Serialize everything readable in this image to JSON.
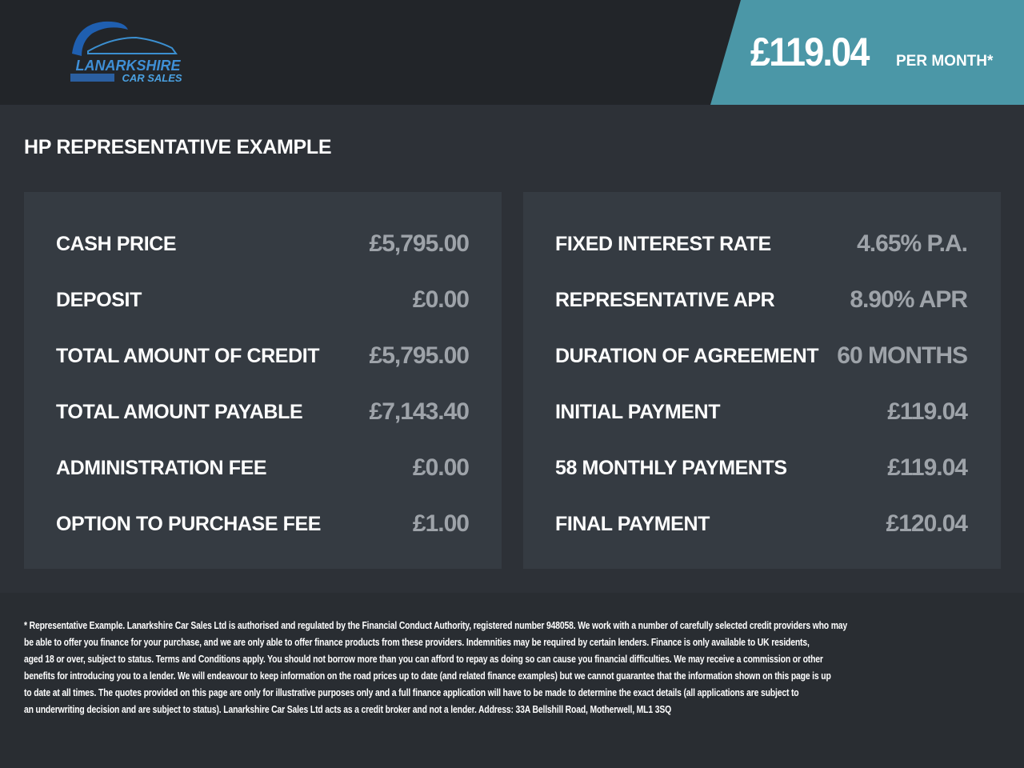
{
  "header": {
    "logo_text": [
      "LANARKSHIRE",
      "CAR SALES"
    ],
    "monthly_price": "£119.04",
    "per_month": "PER MONTH*"
  },
  "colors": {
    "accent": "#4b97a7",
    "header_bg": "#222529",
    "panel_bg": "#353b42"
  },
  "title": "HP REPRESENTATIVE EXAMPLE",
  "left": [
    {
      "label": "CASH PRICE",
      "value": "£5,795.00"
    },
    {
      "label": "DEPOSIT",
      "value": "£0.00"
    },
    {
      "label": "TOTAL AMOUNT OF CREDIT",
      "value": "£5,795.00"
    },
    {
      "label": "TOTAL AMOUNT PAYABLE",
      "value": "£7,143.40"
    },
    {
      "label": "ADMINISTRATION FEE",
      "value": "£0.00"
    },
    {
      "label": "OPTION TO PURCHASE FEE",
      "value": "£1.00"
    }
  ],
  "right": [
    {
      "label": "FIXED INTEREST RATE",
      "value": "4.65% P.A."
    },
    {
      "label": "REPRESENTATIVE APR",
      "value": "8.90% APR"
    },
    {
      "label": "DURATION OF AGREEMENT",
      "value": "60 MONTHS"
    },
    {
      "label": "INITIAL PAYMENT",
      "value": "£119.04"
    },
    {
      "label": "58 MONTHLY PAYMENTS",
      "value": "£119.04"
    },
    {
      "label": "FINAL PAYMENT",
      "value": "£120.04"
    }
  ],
  "footer": [
    "* Representative Example. Lanarkshire Car Sales Ltd is authorised and regulated by the Financial Conduct Authority, registered number 948058. We work with a number of carefully selected credit providers who may",
    "be able to offer you finance for your purchase, and we are only able to offer finance products from these providers. Indemnities may be required by certain lenders. Finance is only available to UK residents,",
    "aged 18 or over, subject to status. Terms and Conditions apply. You should not borrow more than you can afford to repay as doing so can cause you financial difficulties. We may receive a commission or other",
    "benefits for introducing you to a lender. We will endeavour to keep information on the road prices up to date (and related finance examples) but we cannot guarantee that the information shown on this page is up",
    "to date at all times. The quotes provided on this page are only for illustrative purposes only and a full finance application will have to be made to determine the exact details (all applications are subject to",
    "an underwriting decision and are subject to status). Lanarkshire Car Sales Ltd acts as a credit broker and not a lender. Address: 33A Bellshill Road, Motherwell, ML1 3SQ"
  ]
}
